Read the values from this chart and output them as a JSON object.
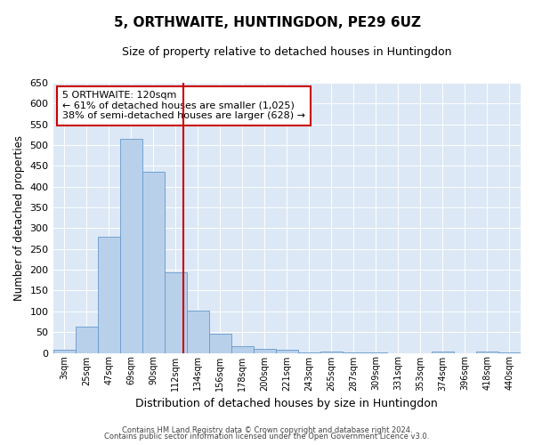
{
  "title": "5, ORTHWAITE, HUNTINGDON, PE29 6UZ",
  "subtitle": "Size of property relative to detached houses in Huntingdon",
  "xlabel": "Distribution of detached houses by size in Huntingdon",
  "ylabel": "Number of detached properties",
  "bar_labels": [
    "3sqm",
    "25sqm",
    "47sqm",
    "69sqm",
    "90sqm",
    "112sqm",
    "134sqm",
    "156sqm",
    "178sqm",
    "200sqm",
    "221sqm",
    "243sqm",
    "265sqm",
    "287sqm",
    "309sqm",
    "331sqm",
    "353sqm",
    "374sqm",
    "396sqm",
    "418sqm",
    "440sqm"
  ],
  "bar_values": [
    8,
    63,
    280,
    515,
    435,
    193,
    101,
    46,
    17,
    10,
    7,
    2,
    4,
    2,
    1,
    0,
    0,
    4,
    0,
    4,
    2
  ],
  "bar_color": "#b8d0ea",
  "bar_edge_color": "#6699cc",
  "vline_x": 5.5,
  "vline_color": "#cc0000",
  "ylim": [
    0,
    650
  ],
  "yticks": [
    0,
    50,
    100,
    150,
    200,
    250,
    300,
    350,
    400,
    450,
    500,
    550,
    600,
    650
  ],
  "annotation_title": "5 ORTHWAITE: 120sqm",
  "annotation_line1": "← 61% of detached houses are smaller (1,025)",
  "annotation_line2": "38% of semi-detached houses are larger (628) →",
  "annotation_box_color": "#ffffff",
  "annotation_box_edge": "#cc0000",
  "footer_line1": "Contains HM Land Registry data © Crown copyright and database right 2024.",
  "footer_line2": "Contains public sector information licensed under the Open Government Licence v3.0.",
  "bg_color": "#dce8f5"
}
